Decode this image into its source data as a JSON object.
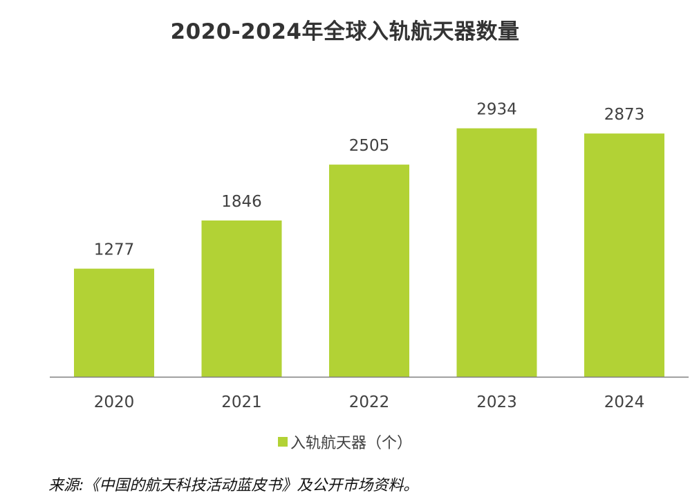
{
  "chart_data": {
    "type": "bar",
    "title": "2020-2024年全球入轨航天器数量",
    "categories": [
      "2020",
      "2021",
      "2022",
      "2023",
      "2024"
    ],
    "series": [
      {
        "name": "入轨航天器（个）",
        "values": [
          1277,
          1846,
          2505,
          2934,
          2873
        ],
        "color": "#b2d235"
      }
    ],
    "xlabel": "",
    "ylabel": "",
    "ylim": [
      0,
      3150
    ],
    "grid": false,
    "legend": "bottom-center",
    "data_labels": true
  },
  "source": "来源:《中国的航天科技活动蓝皮书》及公开市场资料。"
}
